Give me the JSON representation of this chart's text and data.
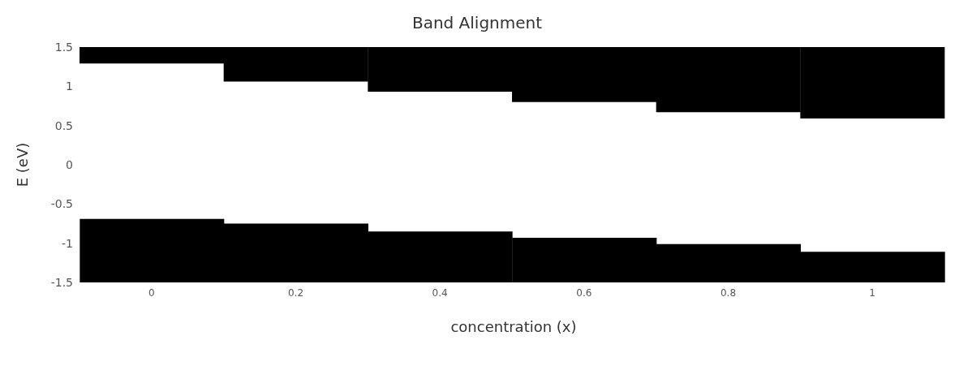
{
  "chart_data": {
    "type": "bar",
    "title": "Band Alignment",
    "xlabel": "concentration (x)",
    "ylabel": "E (eV)",
    "categories": [
      "0",
      "0.2",
      "0.4",
      "0.6",
      "0.8",
      "1"
    ],
    "series": [
      {
        "color": "#000000",
        "base": [
          1.29,
          1.06,
          0.93,
          0.8,
          0.67,
          0.59
        ],
        "values": [
          0.21,
          0.44,
          0.57,
          0.7,
          0.83,
          0.91
        ]
      },
      {
        "color": "#000000",
        "base": [
          -1.5,
          -1.5,
          -1.5,
          -1.5,
          -1.5,
          -1.5
        ],
        "values": [
          0.81,
          0.75,
          0.65,
          0.57,
          0.49,
          0.39
        ]
      }
    ],
    "ylim": [
      -1.5,
      1.5
    ],
    "yticks": [
      -1.5,
      -1,
      -0.5,
      0,
      0.5,
      1,
      1.5
    ],
    "grid": false,
    "legend": false
  }
}
